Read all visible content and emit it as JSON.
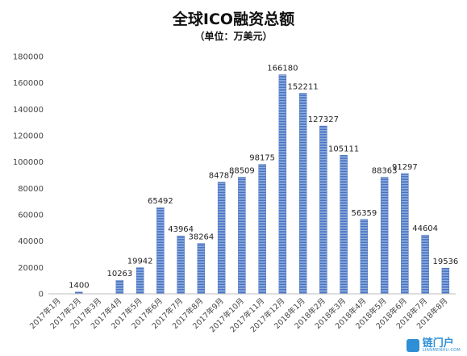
{
  "chart_data": {
    "type": "bar",
    "title": "全球ICO融资总额",
    "subtitle": "（单位：万美元）",
    "categories": [
      "2017年1月",
      "2017年2月",
      "2017年3月",
      "2017年4月",
      "2017年5月",
      "2017年6月",
      "2017年7月",
      "2017年8月",
      "2017年9月",
      "2017年10月",
      "2017年11月",
      "2017年12月",
      "2018年1月",
      "2018年2月",
      "2018年3月",
      "2018年4月",
      "2018年5月",
      "2018年6月",
      "2018年7月",
      "2018年8月"
    ],
    "values": [
      0,
      1400,
      0,
      10263,
      19942,
      65492,
      43964,
      38264,
      84787,
      88509,
      98175,
      166180,
      152211,
      127327,
      105111,
      56359,
      88363,
      91297,
      44604,
      19536
    ],
    "data_labels": [
      "",
      "1400",
      "",
      "10263",
      "19942",
      "65492",
      "43964",
      "38264",
      "84787",
      "88509",
      "98175",
      "166180",
      "152211",
      "127327",
      "105111",
      "56359",
      "88363",
      "91297",
      "44604",
      "19536"
    ],
    "yticks": [
      "0",
      "20000",
      "40000",
      "60000",
      "80000",
      "100000",
      "120000",
      "140000",
      "160000",
      "180000"
    ],
    "ylim": [
      0,
      180000
    ],
    "grid": false,
    "bar_color": "#4472C4"
  },
  "watermark": {
    "main": "链门户",
    "sub": "LIANMENHU.COM"
  }
}
